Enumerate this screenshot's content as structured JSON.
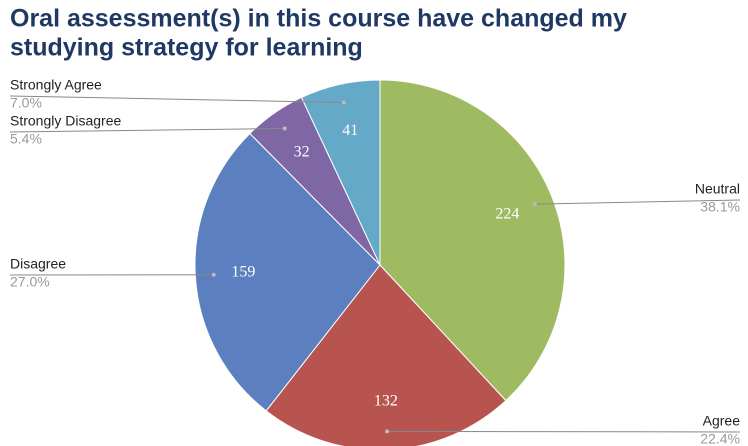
{
  "chart_data": {
    "type": "pie",
    "title_lines": [
      "Oral assessment(s) in this course have changed my",
      "studying strategy for learning"
    ],
    "categories": [
      "Neutral",
      "Agree",
      "Disagree",
      "Strongly Disagree",
      "Strongly Agree"
    ],
    "values": [
      224,
      132,
      159,
      32,
      41
    ],
    "percent_labels": [
      "38.1%",
      "22.4%",
      "27.0%",
      "5.4%",
      "7.0%"
    ],
    "colors": [
      "#9fbb62",
      "#b85450",
      "#5b7fbf",
      "#7e67a4",
      "#65a9c8"
    ]
  }
}
